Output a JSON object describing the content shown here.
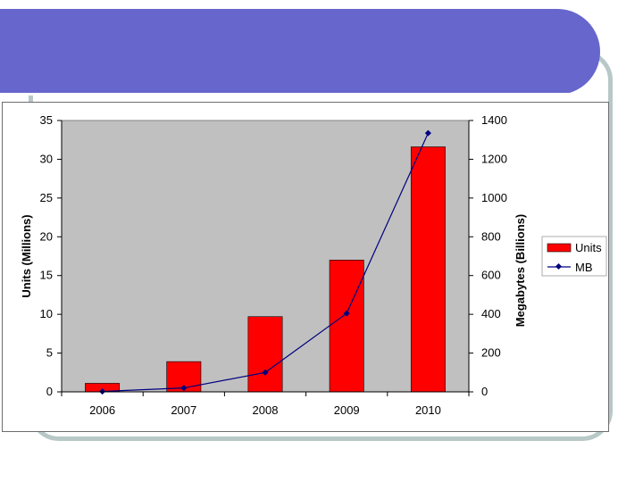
{
  "colors": {
    "title_bar": "#6666cc",
    "frame": "#b7c8c7",
    "plot_area": "#c0c0c0",
    "bar_fill": "#ff0000",
    "line": "#000080"
  },
  "chart_data": {
    "type": "bar",
    "categories": [
      "2006",
      "2007",
      "2008",
      "2009",
      "2010"
    ],
    "series": [
      {
        "name": "Units",
        "type": "bar",
        "axis": "left",
        "values": [
          1.1,
          3.9,
          9.7,
          17.0,
          31.6
        ]
      },
      {
        "name": "MB",
        "type": "line",
        "axis": "right",
        "values": [
          2,
          20,
          100,
          405,
          1335
        ]
      }
    ],
    "ylabel": "Units (Millions)",
    "ylim": [
      0,
      35
    ],
    "yticks": [
      "0",
      "5",
      "10",
      "15",
      "20",
      "25",
      "30",
      "35"
    ],
    "y2label": "Megabytes (Billions)",
    "y2lim": [
      0,
      1400
    ],
    "y2ticks": [
      "0",
      "200",
      "400",
      "600",
      "800",
      "1000",
      "1200",
      "1400"
    ],
    "legend": "right",
    "grid": false
  }
}
